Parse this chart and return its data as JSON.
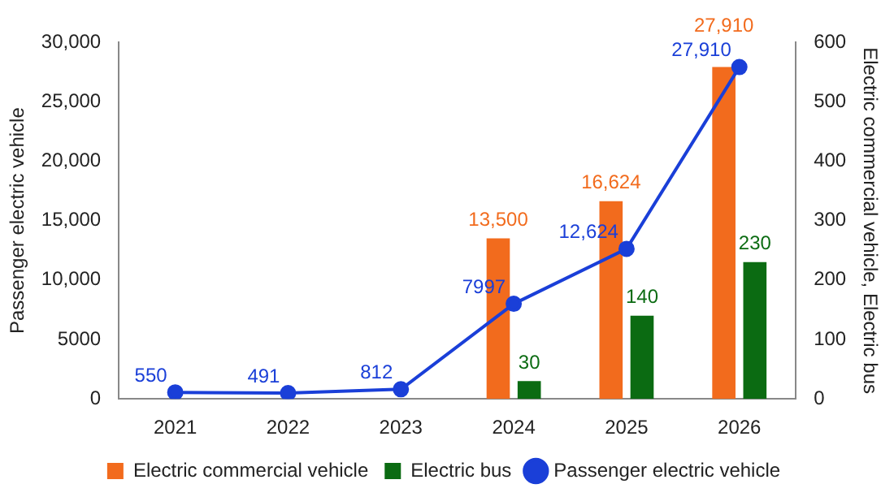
{
  "chart_data": {
    "type": "bar",
    "xlabel": null,
    "ylabel": "Passenger electric vehicle",
    "y2label": "Electric commercial vehicle, Electric bus",
    "categories": [
      "2021",
      "2022",
      "2023",
      "2024",
      "2025",
      "2026"
    ],
    "series": [
      {
        "name": "Electric commercial vehicle",
        "color": "#f26b1d",
        "values": [
          null,
          null,
          null,
          13500,
          16624,
          27910
        ],
        "value_labels": [
          null,
          null,
          null,
          "13,500",
          "16,624",
          "27,910"
        ]
      },
      {
        "name": "Electric bus",
        "axis": "y2",
        "color": "#0b6b12",
        "values": [
          null,
          null,
          null,
          30,
          140,
          230
        ],
        "value_labels": [
          null,
          null,
          null,
          "30",
          "140",
          "230"
        ]
      },
      {
        "name": "Passenger electric vehicle",
        "type": "line",
        "color": "#1a3fd8",
        "marker": "circle",
        "values": [
          550,
          491,
          812,
          7997,
          12624,
          27910
        ],
        "value_labels": [
          "550",
          "491",
          "812",
          "7997",
          "12,624",
          "27,910"
        ]
      }
    ],
    "ylim": [
      0,
      30000
    ],
    "yticks": [
      0,
      {
        "value": 5000,
        "label": "5000"
      },
      {
        "value": 10000,
        "label": "10,000"
      },
      {
        "value": 15000,
        "label": "15,000"
      },
      {
        "value": 20000,
        "label": "20,000"
      },
      {
        "value": 25000,
        "label": "25,000"
      },
      {
        "value": 30000,
        "label": "30,000"
      }
    ],
    "y2lim": [
      0,
      600
    ],
    "y2ticks": [
      0,
      100,
      200,
      300,
      400,
      500,
      600
    ],
    "grid": false,
    "legend": "bottom"
  }
}
